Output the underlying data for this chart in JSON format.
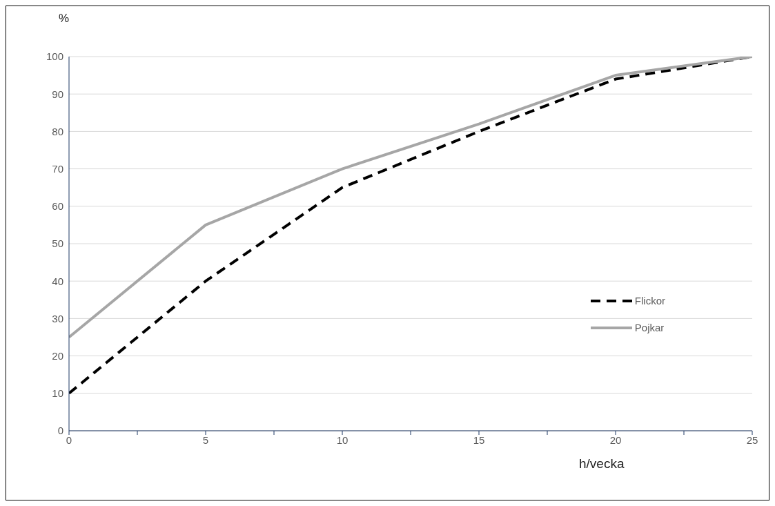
{
  "chart_data": {
    "type": "line",
    "xlabel": "h/vecka",
    "ylabel": "%",
    "x": [
      0,
      5,
      10,
      15,
      20,
      25
    ],
    "series": [
      {
        "name": "Flickor",
        "color": "#000000",
        "line_style": "dashed",
        "values": [
          10,
          40,
          65,
          80,
          94,
          100
        ]
      },
      {
        "name": "Pojkar",
        "color": "#a6a6a6",
        "line_style": "solid",
        "values": [
          25,
          55,
          70,
          82,
          95,
          100
        ]
      }
    ],
    "xlim": [
      0,
      25
    ],
    "xticks": [
      0,
      {
        "value": 2.5,
        "label": null
      },
      5,
      {
        "value": 7.5,
        "label": null
      },
      10,
      {
        "value": 12.5,
        "label": null
      },
      15,
      {
        "value": 17.5,
        "label": null
      },
      20,
      {
        "value": 22.5,
        "label": null
      },
      25
    ],
    "ylim": [
      0,
      100
    ],
    "yticks": [
      0,
      10,
      20,
      30,
      40,
      50,
      60,
      70,
      80,
      90,
      100
    ],
    "grid": "y",
    "legend": "right",
    "marker": "none"
  }
}
